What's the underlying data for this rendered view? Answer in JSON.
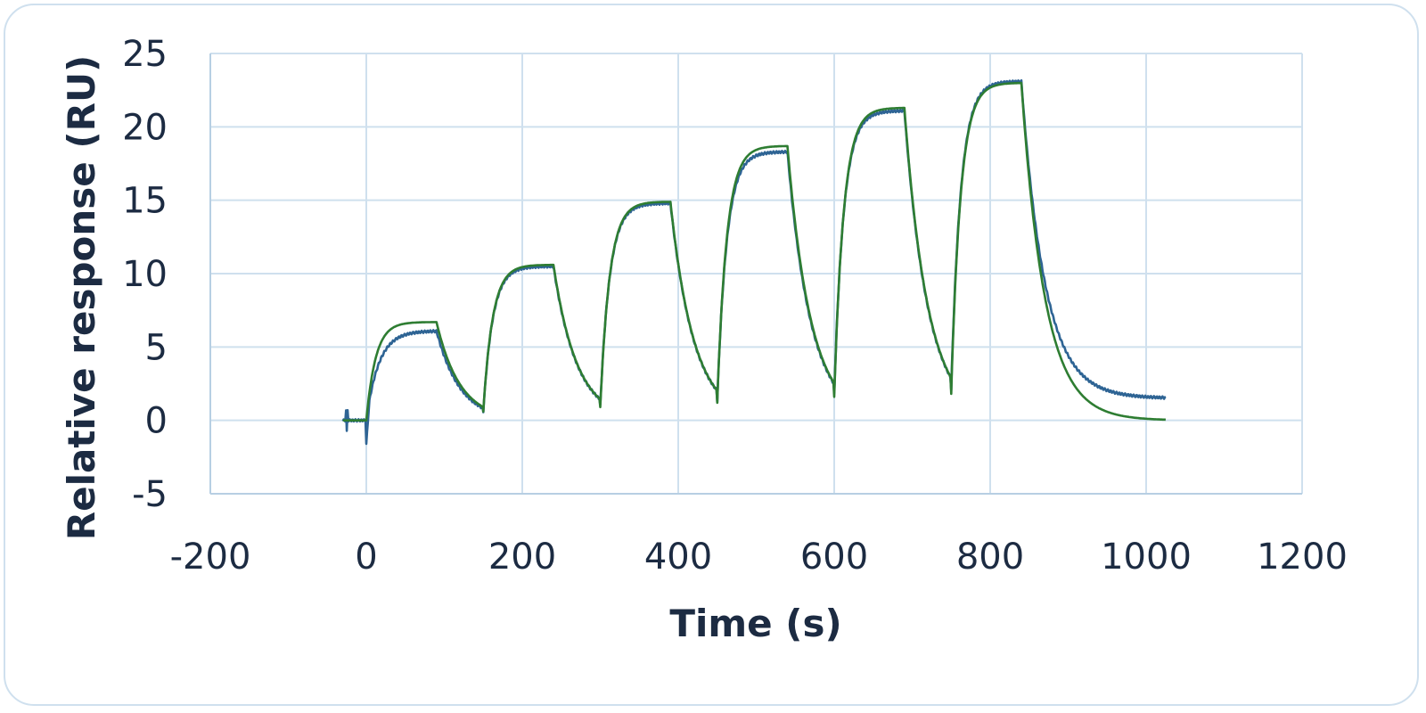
{
  "chart_data": {
    "type": "line",
    "title": "",
    "xlabel": "Time (s)",
    "ylabel": "Relative response (RU)",
    "xlim": [
      -200,
      1200
    ],
    "ylim": [
      -5,
      25
    ],
    "xticks": [
      -200,
      0,
      200,
      400,
      600,
      800,
      1000,
      1200
    ],
    "yticks": [
      -5,
      0,
      5,
      10,
      15,
      20,
      25
    ],
    "grid": true,
    "legend": "none",
    "cycles": [
      {
        "start": 0,
        "end": 90,
        "plateau_measured": 6.1,
        "plateau_fit": 6.7,
        "end_measured": 0.6,
        "end_fit": 0.6
      },
      {
        "start": 150,
        "end": 240,
        "plateau_measured": 10.5,
        "plateau_fit": 10.6,
        "end_measured": 1.0,
        "end_fit": 0.9
      },
      {
        "start": 300,
        "end": 390,
        "plateau_measured": 14.8,
        "plateau_fit": 14.9,
        "end_measured": 1.3,
        "end_fit": 1.2
      },
      {
        "start": 450,
        "end": 540,
        "plateau_measured": 18.3,
        "plateau_fit": 18.7,
        "end_measured": 1.8,
        "end_fit": 1.6
      },
      {
        "start": 600,
        "end": 690,
        "plateau_measured": 21.1,
        "plateau_fit": 21.3,
        "end_measured": 2.1,
        "end_fit": 1.8
      },
      {
        "start": 750,
        "end": 840,
        "plateau_measured": 23.1,
        "plateau_fit": 23.0,
        "end_measured": 1.5,
        "end_fit": 0.0
      }
    ],
    "series": [
      {
        "color": "#2e6494",
        "x_range": [
          -30,
          1025
        ]
      },
      {
        "color": "#2e7d32",
        "x_range": [
          -30,
          1025
        ]
      }
    ]
  }
}
